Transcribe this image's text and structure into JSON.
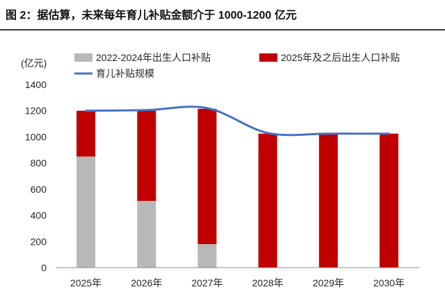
{
  "chart_data": {
    "type": "bar",
    "title": "图 2：据估算，未来每年育儿补贴金额介于 1000-1200 亿元",
    "xlabel": "",
    "ylabel": "(亿元)",
    "ylim": [
      0,
      1400
    ],
    "yticks": [
      0,
      200,
      400,
      600,
      800,
      1000,
      1200,
      1400
    ],
    "categories": [
      "2025年",
      "2026年",
      "2027年",
      "2028年",
      "2029年",
      "2030年"
    ],
    "stacked": true,
    "grid": false,
    "legend": "top",
    "series": [
      {
        "name": "2022-2024年出生人口补贴",
        "type": "bar",
        "color": "#b8b8b8",
        "values": [
          850,
          510,
          180,
          0,
          0,
          0
        ]
      },
      {
        "name": "2025年及之后出生人口补贴",
        "type": "bar",
        "color": "#c00000",
        "values": [
          350,
          690,
          1035,
          1025,
          1025,
          1025
        ]
      },
      {
        "name": "育儿补贴规模",
        "type": "line",
        "color": "#4472c4",
        "values": [
          1200,
          1205,
          1220,
          1030,
          1025,
          1025
        ]
      }
    ]
  }
}
